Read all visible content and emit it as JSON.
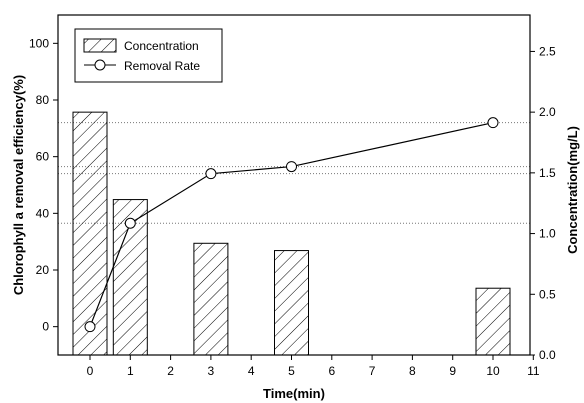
{
  "chart_data": {
    "type": "bar+line",
    "title": "",
    "xlabel": "Time(min)",
    "ylabel_left": "Chlorophyll a removal efficiency(%)",
    "ylabel_right": "Concentration(mg/L)",
    "x_ticks": [
      0,
      1,
      2,
      3,
      4,
      5,
      6,
      7,
      8,
      9,
      10,
      11
    ],
    "x_categories": [
      0,
      1,
      3,
      5,
      10
    ],
    "xlim": [
      -0.5,
      11
    ],
    "ylim_left": [
      -10,
      110
    ],
    "yticks_left": [
      0,
      20,
      40,
      60,
      80,
      100
    ],
    "ylim_right": [
      0,
      2.8
    ],
    "yticks_right": [
      "0.0",
      "0.5",
      "1.0",
      "1.5",
      "2.0",
      "2.5"
    ],
    "legend_position": "top-left",
    "series": [
      {
        "name": "Concentration",
        "type": "bar",
        "axis": "right",
        "pattern": "diagonal-hatch",
        "x": [
          0,
          1,
          3,
          5,
          10
        ],
        "values": [
          2.0,
          1.28,
          0.92,
          0.86,
          0.55
        ]
      },
      {
        "name": "Removal Rate",
        "type": "line",
        "axis": "left",
        "marker": "open-circle",
        "x": [
          0,
          1,
          3,
          5,
          10
        ],
        "values": [
          0,
          36.5,
          54,
          56.5,
          72
        ]
      }
    ],
    "reference_lines": "dotted horizontal lines from the removal-rate points to the right axis"
  }
}
